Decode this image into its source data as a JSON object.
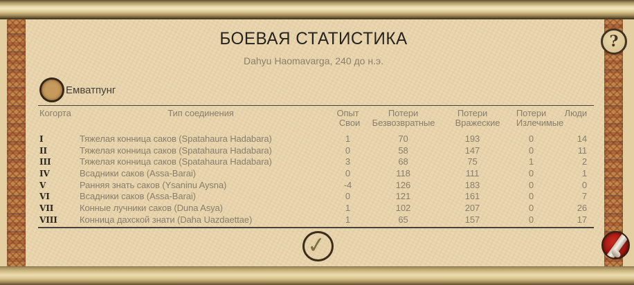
{
  "window": {
    "title": "БОЕВАЯ СТАТИСТИКА",
    "subtitle": "Dahyu Haomavarga, 240 до н.э."
  },
  "faction": {
    "name": "Емватпунг",
    "icon": "faction-coin-icon"
  },
  "table": {
    "headers": {
      "cohort": "Когорта",
      "unit_type": "Тип соединения",
      "experience": "Опыт",
      "losses1": "Потери",
      "losses2": "Потери",
      "losses3": "Потери",
      "men": "Люди",
      "sub_own": "Свои",
      "sub_irretrievable": "Безвозвратные",
      "sub_enemy": "Вражеские",
      "sub_healable": "Излечимые"
    },
    "rows": [
      {
        "cohort": "I",
        "unit": "Тяжелая конница саков (Spatahaura Hadabara)",
        "exp": "1",
        "own": "70",
        "enemy": "193",
        "heal": "0",
        "men": "14"
      },
      {
        "cohort": "II",
        "unit": "Тяжелая конница саков (Spatahaura Hadabara)",
        "exp": "0",
        "own": "58",
        "enemy": "147",
        "heal": "0",
        "men": "11"
      },
      {
        "cohort": "III",
        "unit": "Тяжелая конница саков (Spatahaura Hadabara)",
        "exp": "3",
        "own": "68",
        "enemy": "75",
        "heal": "1",
        "men": "2"
      },
      {
        "cohort": "IV",
        "unit": "Всадники саков (Assa-Barai)",
        "exp": "0",
        "own": "118",
        "enemy": "111",
        "heal": "0",
        "men": "1"
      },
      {
        "cohort": "V",
        "unit": "Ранняя знать саков (Ysaninu Aysna)",
        "exp": "-4",
        "own": "126",
        "enemy": "183",
        "heal": "0",
        "men": "0"
      },
      {
        "cohort": "VI",
        "unit": "Всадники саков (Assa-Barai)",
        "exp": "0",
        "own": "121",
        "enemy": "161",
        "heal": "0",
        "men": "7"
      },
      {
        "cohort": "VII",
        "unit": "Конные лучники саков (Duna Asya)",
        "exp": "1",
        "own": "102",
        "enemy": "207",
        "heal": "0",
        "men": "26"
      },
      {
        "cohort": "VIII",
        "unit": "Конница дахской знати (Daha Uazdaettae)",
        "exp": "1",
        "own": "65",
        "enemy": "157",
        "heal": "0",
        "men": "17"
      }
    ]
  },
  "buttons": {
    "help": "?",
    "confirm": "✓"
  },
  "colors": {
    "parchment": "#ead7b0",
    "border_pattern": "#b97a43",
    "roller_gold": "#e8d9a9",
    "ink_dark": "#26241f",
    "ink_gray": "#877e6b",
    "scroll_button_red": "#a41711"
  }
}
